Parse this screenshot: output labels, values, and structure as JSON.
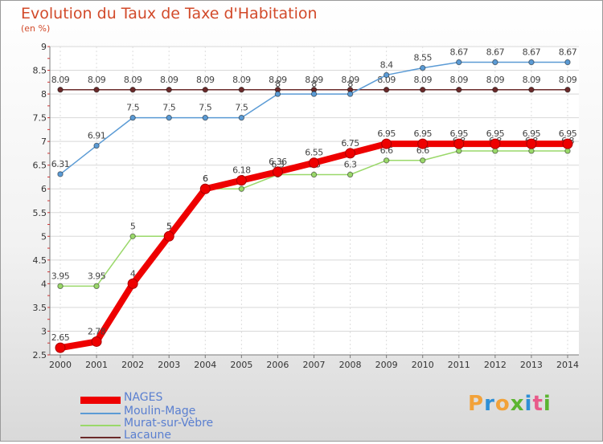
{
  "chart_data": {
    "type": "line",
    "title": "Evolution du Taux de Taxe d'Habitation",
    "subtitle": "(en %)",
    "x": [
      "2000",
      "2001",
      "2002",
      "2003",
      "2004",
      "2005",
      "2006",
      "2007",
      "2008",
      "2009",
      "2010",
      "2011",
      "2012",
      "2013",
      "2014"
    ],
    "ylim": [
      2.5,
      9
    ],
    "yticks": [
      "2.5",
      "3",
      "3.5",
      "4",
      "4.5",
      "5",
      "5.5",
      "6",
      "6.5",
      "7",
      "7.5",
      "8",
      "8.5",
      "9"
    ],
    "grid": true,
    "legend_position": "bottom-left",
    "series": [
      {
        "name": "Lacaune",
        "color": "#6b2a2a",
        "values": [
          8.09,
          8.09,
          8.09,
          8.09,
          8.09,
          8.09,
          8.09,
          8.09,
          8.09,
          8.09,
          8.09,
          8.09,
          8.09,
          8.09,
          8.09
        ],
        "labels": [
          "8.09",
          "8.09",
          "8.09",
          "8.09",
          "8.09",
          "8.09",
          "8.09",
          "8.09",
          "8.09",
          "8.09",
          "8.09",
          "8.09",
          "8.09",
          "8.09",
          "8.09"
        ]
      },
      {
        "name": "Moulin-Mage",
        "color": "#5b9bd5",
        "values": [
          6.31,
          6.91,
          7.5,
          7.5,
          7.5,
          7.5,
          8,
          8,
          8,
          8.4,
          8.55,
          8.67,
          8.67,
          8.67,
          8.67
        ],
        "labels": [
          "6.31",
          "6.91",
          "7.5",
          "7.5",
          "7.5",
          "7.5",
          "8",
          "8",
          "8",
          "8.4",
          "8.55",
          "8.67",
          "8.67",
          "8.67",
          "8.67"
        ]
      },
      {
        "name": "Murat-sur-Vèbre",
        "color": "#9ad86a",
        "values": [
          3.95,
          3.95,
          5,
          5,
          6,
          6,
          6.3,
          6.3,
          6.3,
          6.6,
          6.6,
          6.8,
          6.8,
          6.8,
          6.8
        ],
        "labels": [
          "3.95",
          "3.95",
          "5",
          "5",
          "6",
          "6",
          "6.3",
          "6.3",
          "6.3",
          "6.6",
          "6.6",
          "6.8",
          "6.8",
          "6.8",
          "6.8"
        ]
      },
      {
        "name": "NAGES",
        "color": "#ee0000",
        "values": [
          2.65,
          2.78,
          4,
          5,
          6,
          6.18,
          6.36,
          6.55,
          6.75,
          6.95,
          6.95,
          6.95,
          6.95,
          6.95,
          6.95
        ],
        "labels": [
          "2.65",
          "2.78",
          "4",
          "5",
          "6",
          "6.18",
          "6.36",
          "6.55",
          "6.75",
          "6.95",
          "6.95",
          "6.95",
          "6.95",
          "6.95",
          "6.95"
        ]
      }
    ],
    "legend_order": [
      "NAGES",
      "Moulin-Mage",
      "Murat-sur-Vèbre",
      "Lacaune"
    ]
  },
  "legend": {
    "items": [
      {
        "name": "NAGES",
        "color": "#ee0000"
      },
      {
        "name": "Moulin-Mage",
        "color": "#5b9bd5"
      },
      {
        "name": "Murat-sur-Vèbre",
        "color": "#9ad86a"
      },
      {
        "name": "Lacaune",
        "color": "#6b2a2a"
      }
    ]
  },
  "logo": {
    "text": "Proxiti",
    "letters": [
      {
        "ch": "P",
        "color": "#f2a23a"
      },
      {
        "ch": "r",
        "color": "#2e8fd6"
      },
      {
        "ch": "o",
        "color": "#f2a23a"
      },
      {
        "ch": "x",
        "color": "#5cb531"
      },
      {
        "ch": "i",
        "color": "#2e8fd6"
      },
      {
        "ch": "t",
        "color": "#e85a8a"
      },
      {
        "ch": "i",
        "color": "#5cb531"
      }
    ]
  }
}
